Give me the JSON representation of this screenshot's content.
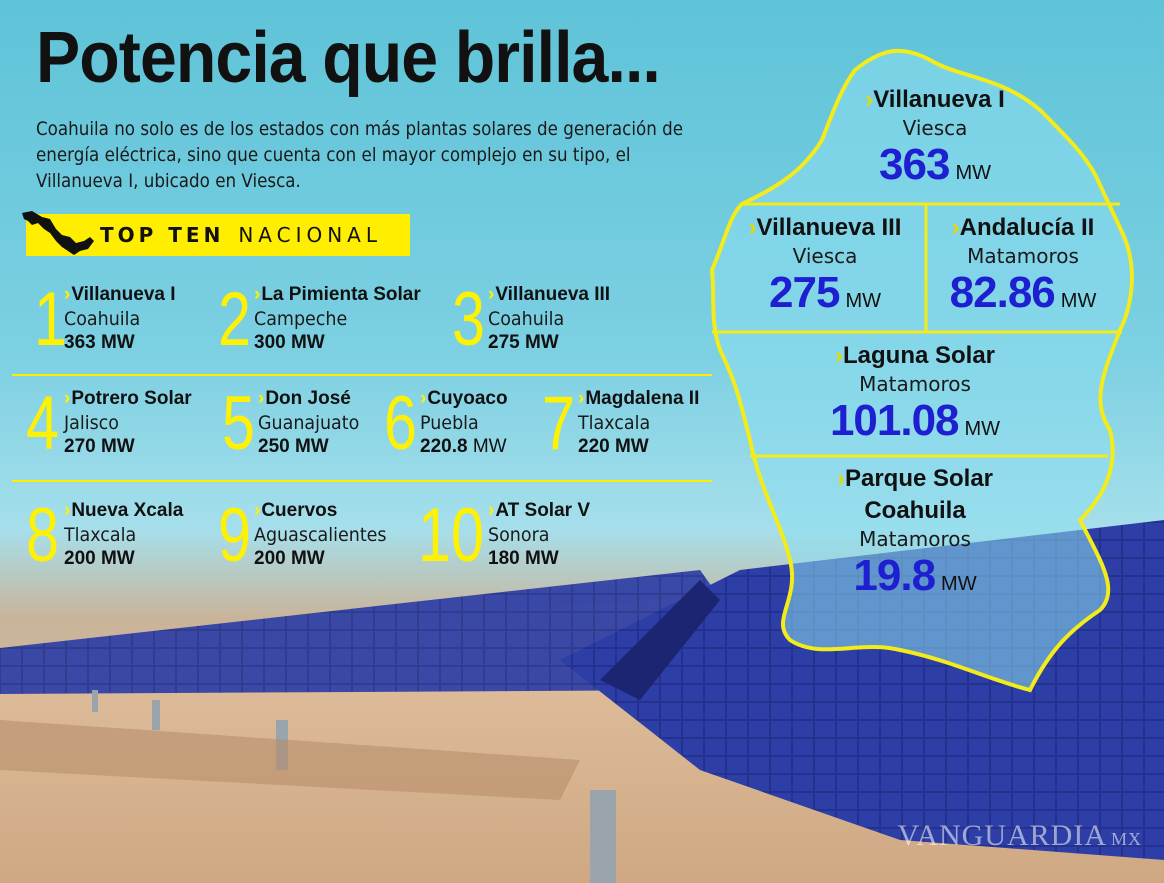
{
  "header": {
    "title": "Potencia que brilla...",
    "intro": "Coahuila no solo es de los estados con más plantas solares de generación de energía eléctrica, sino que cuenta con el mayor complejo en su tipo, el Villanueva I, ubicado en Viesca."
  },
  "banner": {
    "bold": "TOP TEN",
    "light": "NACIONAL",
    "icon": "mexico-map-icon"
  },
  "ranking": [
    {
      "rank": "1",
      "name": "Villanueva I",
      "state": "Coahuila",
      "mw": "363",
      "unit": "MW"
    },
    {
      "rank": "2",
      "name": "La Pimienta Solar",
      "state": "Campeche",
      "mw": "300",
      "unit": "MW"
    },
    {
      "rank": "3",
      "name": "Villanueva III",
      "state": "Coahuila",
      "mw": "275",
      "unit": "MW"
    },
    {
      "rank": "4",
      "name": "Potrero Solar",
      "state": "Jalisco",
      "mw": "270",
      "unit": "MW"
    },
    {
      "rank": "5",
      "name": "Don José",
      "state": "Guanajuato",
      "mw": "250",
      "unit": "MW"
    },
    {
      "rank": "6",
      "name": "Cuyoaco",
      "state": "Puebla",
      "mw": "220.8",
      "unit": "MW"
    },
    {
      "rank": "7",
      "name": "Magdalena II",
      "state": "Tlaxcala",
      "mw": "220",
      "unit": "MW"
    },
    {
      "rank": "8",
      "name": "Nueva Xcala",
      "state": "Tlaxcala",
      "mw": "200",
      "unit": "MW"
    },
    {
      "rank": "9",
      "name": "Cuervos",
      "state": "Aguascalientes",
      "mw": "200",
      "unit": "MW"
    },
    {
      "rank": "10",
      "name": "AT Solar V",
      "state": "Sonora",
      "mw": "180",
      "unit": "MW"
    }
  ],
  "coahuila": [
    {
      "name": "Villanueva I",
      "city": "Viesca",
      "value": "363",
      "unit": "MW"
    },
    {
      "name": "Villanueva III",
      "city": "Viesca",
      "value": "275",
      "unit": "MW"
    },
    {
      "name": "Andalucía II",
      "city": "Matamoros",
      "value": "82.86",
      "unit": "MW"
    },
    {
      "name": "Laguna Solar",
      "city": "Matamoros",
      "value": "101.08",
      "unit": "MW"
    },
    {
      "name1": "Parque Solar",
      "name2": "Coahuila",
      "city": "Matamoros",
      "value": "19.8",
      "unit": "MW"
    }
  ],
  "watermark": {
    "text": "VANGUARDIA",
    "suffix": "MX"
  },
  "colors": {
    "accent": "#fff200",
    "value": "#1d1fd0",
    "sky": "#7cd0e2",
    "panel": "#1f2e8a"
  }
}
